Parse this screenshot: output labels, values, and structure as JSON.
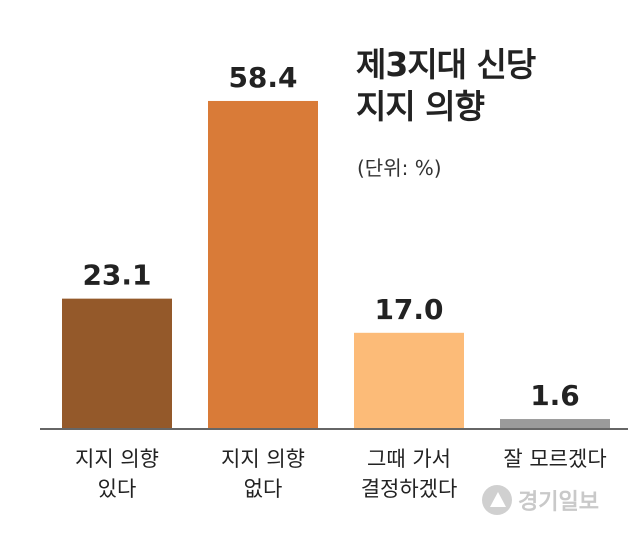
{
  "chart_data": {
    "type": "bar",
    "title_lines": [
      "제3지대 신당",
      "지지 의향"
    ],
    "unit_label": "(단위: %)",
    "categories": [
      [
        "지지 의향",
        "있다"
      ],
      [
        "지지 의향",
        "없다"
      ],
      [
        "그때 가서",
        "결정하겠다"
      ],
      [
        "잘 모르겠다"
      ]
    ],
    "values": [
      23.1,
      58.4,
      17.0,
      1.6
    ],
    "value_labels": [
      "23.1",
      "58.4",
      "17.0",
      "1.6"
    ],
    "bar_colors": [
      "#94592a",
      "#d97b38",
      "#fcbb78",
      "#9a9a9a"
    ],
    "ylim": [
      0,
      60
    ],
    "grid": false,
    "legend": "none"
  },
  "watermark": {
    "text": "경기일보"
  }
}
